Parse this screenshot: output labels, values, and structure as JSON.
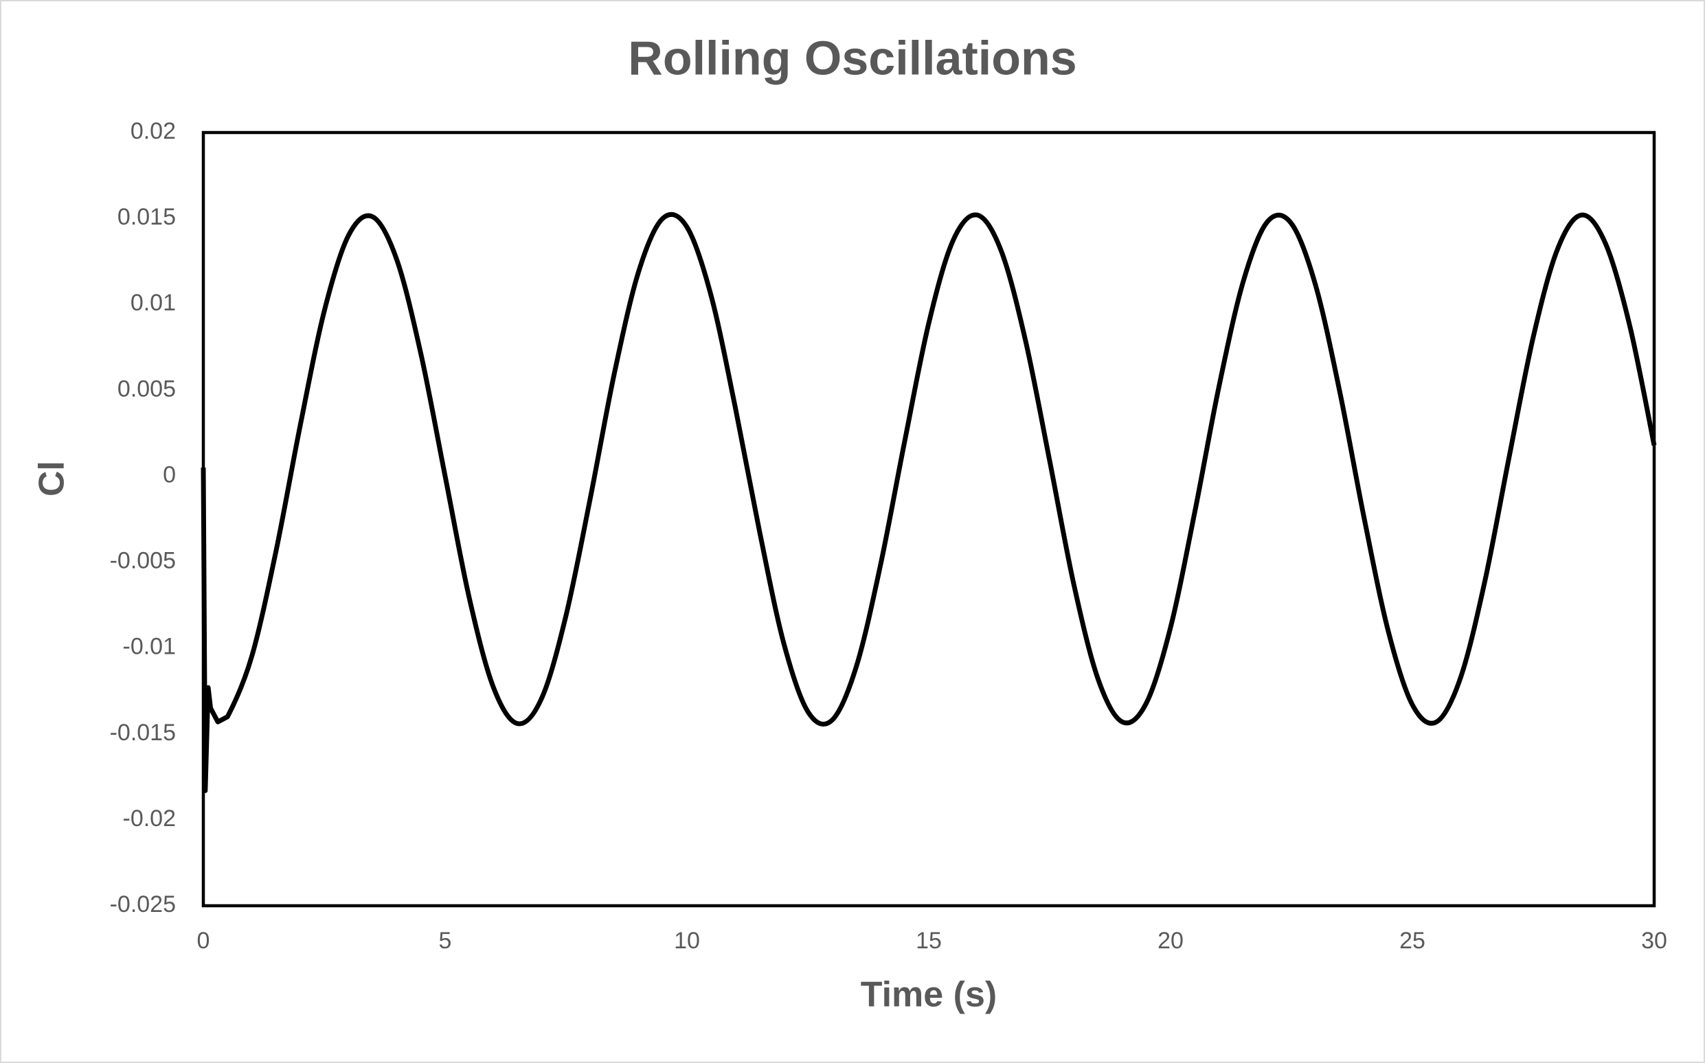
{
  "chart_data": {
    "type": "line",
    "title": "Rolling Oscillations",
    "x_label": "Time (s)",
    "y_label": "Cl",
    "x": [
      0,
      0.04,
      0.1,
      0.15,
      0.3,
      0.5,
      1,
      1.5,
      2,
      2.5,
      3,
      3.5,
      4,
      4.5,
      5,
      5.5,
      6,
      6.5,
      7,
      7.5,
      8,
      8.5,
      9,
      9.5,
      10,
      10.5,
      11,
      11.5,
      12,
      12.5,
      13,
      13.5,
      14,
      14.5,
      15,
      15.5,
      16,
      16.5,
      17,
      17.5,
      18,
      18.5,
      19,
      19.5,
      20,
      20.5,
      21,
      21.5,
      22,
      22.5,
      23,
      23.5,
      24,
      24.5,
      25,
      25.5,
      26,
      26.5,
      27,
      27.5,
      28,
      28.5,
      29,
      29.5,
      30
    ],
    "values": [
      0.0005,
      -0.0183,
      -0.0123,
      -0.0135,
      -0.0143,
      -0.014,
      -0.0105,
      -0.0044,
      0.0029,
      0.0096,
      0.014,
      0.0151,
      0.0126,
      0.0071,
      0,
      -0.0071,
      -0.0123,
      -0.0144,
      -0.0129,
      -0.0081,
      -0.0013,
      0.006,
      0.0119,
      0.015,
      0.0145,
      0.0105,
      0.004,
      -0.0032,
      -0.0097,
      -0.0137,
      -0.0142,
      -0.0111,
      -0.0052,
      0.002,
      0.0089,
      0.0137,
      0.0152,
      0.0131,
      0.0079,
      0.0009,
      -0.0063,
      -0.0118,
      -0.0143,
      -0.0132,
      -0.0088,
      -0.0021,
      0.0052,
      0.0113,
      0.0148,
      0.0147,
      0.0111,
      0.0049,
      -0.0024,
      -0.009,
      -0.0133,
      -0.0143,
      -0.0117,
      -0.0061,
      0.0011,
      0.0081,
      0.0132,
      0.0152,
      0.0135,
      0.0087,
      0.0018
    ],
    "color": "#000000",
    "xlim": [
      0,
      30
    ],
    "xticks": [
      0,
      5,
      10,
      15,
      20,
      25,
      30
    ],
    "ylim": [
      -0.025,
      0.02
    ],
    "yticks": [
      -0.025,
      -0.02,
      -0.015,
      -0.01,
      -0.005,
      0,
      0.005,
      0.01,
      0.015,
      0.02
    ],
    "grid": false
  }
}
